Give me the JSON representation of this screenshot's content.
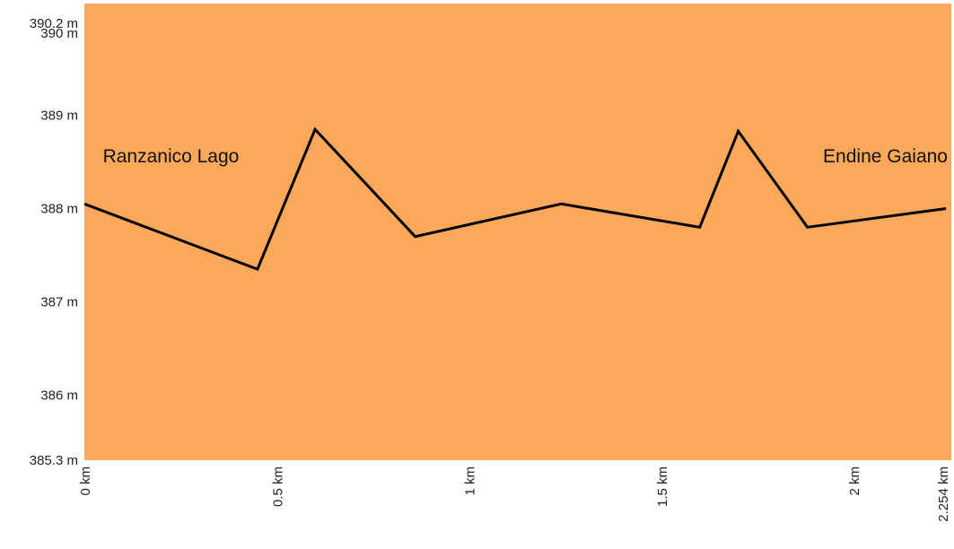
{
  "chart_data": {
    "type": "area",
    "colors": {
      "fill": "#fba85a",
      "line": "#000000"
    },
    "xlim": [
      0,
      2.254
    ],
    "ylim": [
      385.3,
      390.2
    ],
    "x_ticks": [
      {
        "value": 0,
        "label": "0 km"
      },
      {
        "value": 0.5,
        "label": "0.5 km"
      },
      {
        "value": 1,
        "label": "1 km"
      },
      {
        "value": 1.5,
        "label": "1.5 km"
      },
      {
        "value": 2,
        "label": "2 km"
      },
      {
        "value": 2.254,
        "label": "2.254 km"
      }
    ],
    "y_ticks": [
      {
        "value": 385.3,
        "label": "385.3 m"
      },
      {
        "value": 386,
        "label": "386 m"
      },
      {
        "value": 387,
        "label": "387 m"
      },
      {
        "value": 388,
        "label": "388 m"
      },
      {
        "value": 389,
        "label": "389 m"
      },
      {
        "value": 390,
        "label": "390 m"
      },
      {
        "value": 390.2,
        "label": "390.2 m"
      }
    ],
    "points": [
      {
        "x": 0,
        "y": 388.05
      },
      {
        "x": 0.45,
        "y": 387.35
      },
      {
        "x": 0.6,
        "y": 388.85
      },
      {
        "x": 0.86,
        "y": 387.7
      },
      {
        "x": 1.24,
        "y": 388.05
      },
      {
        "x": 1.6,
        "y": 387.8
      },
      {
        "x": 1.7,
        "y": 388.83
      },
      {
        "x": 1.88,
        "y": 387.8
      },
      {
        "x": 2.24,
        "y": 388
      }
    ],
    "annotations": [
      {
        "text": "Ranzanico Lago",
        "x": 0.02,
        "y": 388.35,
        "anchor": "start"
      },
      {
        "text": "Endine Gaiano",
        "x": 2.254,
        "y": 388.35,
        "anchor": "end"
      }
    ]
  }
}
